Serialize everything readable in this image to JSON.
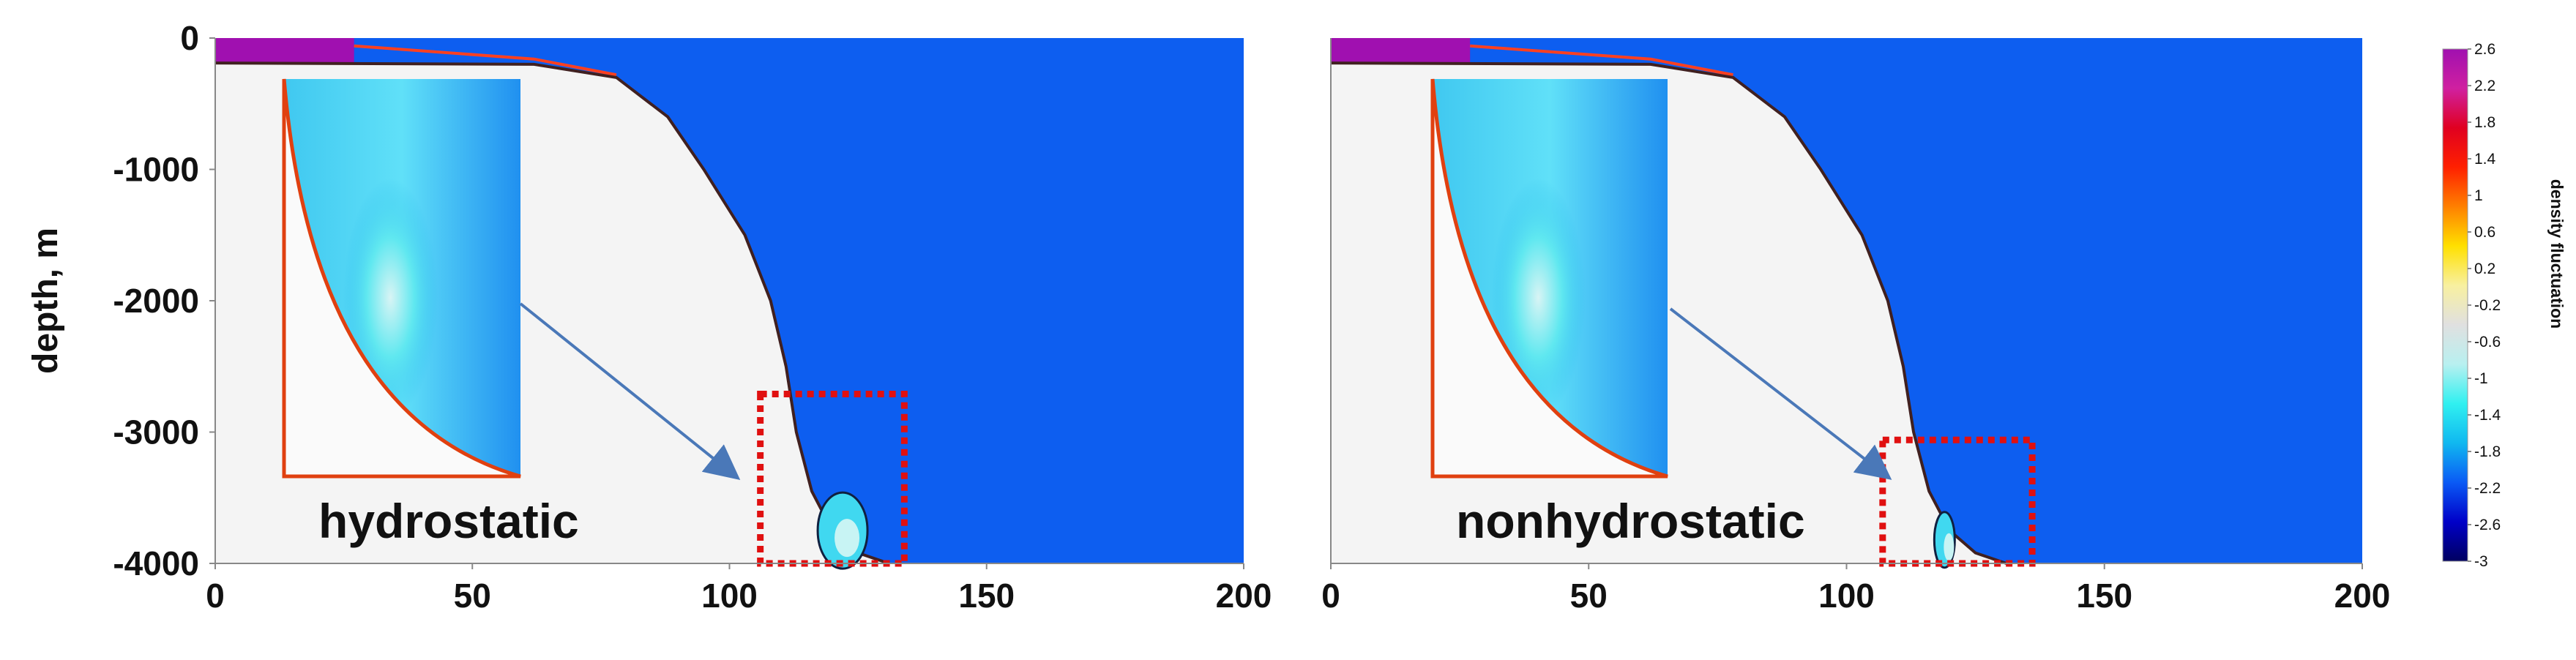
{
  "chart_data": [
    {
      "type": "field",
      "ylabel": "depth, m",
      "annotation": "hydrostatic",
      "color": "#0d5ef0",
      "xlim": [
        0,
        200
      ],
      "ylim": [
        -4000,
        0
      ],
      "xticks": [
        0,
        50,
        100,
        150,
        200
      ],
      "yticks": [
        0,
        -1000,
        -2000,
        -3000,
        -4000
      ]
    },
    {
      "type": "field",
      "annotation": "nonhydrostatic",
      "color": "#0d5ef0",
      "xlim": [
        0,
        200
      ],
      "ylim": [
        -4000,
        0
      ],
      "xticks": [
        0,
        50,
        100,
        150,
        200
      ]
    },
    {
      "type": "colorbar",
      "label": "density fluctuation",
      "zlim": [
        -3,
        2.6
      ],
      "ticks": [
        2.6,
        2.2,
        1.8,
        1.4,
        1,
        0.6,
        0.2,
        -0.2,
        -0.6,
        -1,
        -1.4,
        -1.8,
        -2.2,
        -2.6,
        -3
      ],
      "colors": [
        "#000060",
        "#0000c8",
        "#0a5af5",
        "#10b8f0",
        "#30f0f0",
        "#b8f0f0",
        "#e0e0e0",
        "#f8f0a0",
        "#ffe000",
        "#ff8000",
        "#ff2000",
        "#e00020",
        "#d020a0",
        "#a010b0"
      ]
    }
  ]
}
